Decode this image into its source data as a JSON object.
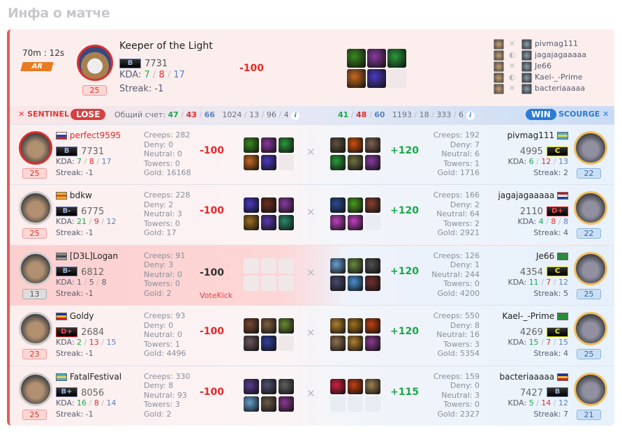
{
  "page_title": "Инфа о матче",
  "summary": {
    "duration": "70m : 12s",
    "mode": "AR",
    "hero_name": "Keeper of the Light",
    "rank": "B",
    "rank_class": "rB",
    "mmr": "7731",
    "kda_label": "KDA:",
    "kills": "7",
    "deaths": "8",
    "assists": "17",
    "streak": "Streak: -1",
    "level": "25",
    "gain": "-100",
    "items": [
      "#3a8a20",
      "#8a3aa0",
      "#2a9a3a",
      "#c86a20",
      "#4a3ac0",
      null
    ],
    "roster": [
      {
        "left": "perfect9595",
        "right": "pivmag111",
        "icon": "swords-icon",
        "highlight": "self"
      },
      {
        "left": "bdkw",
        "right": "jagajagaaaaa",
        "icon": "shield-icon"
      },
      {
        "left": "[D3L]Logan",
        "right": "Je66",
        "icon": "swords-icon",
        "highlight": "kicked"
      },
      {
        "left": "Goldy",
        "right": "Kael-_-Prime",
        "icon": "shield-icon"
      },
      {
        "left": "FatalFestival",
        "right": "bacteriaaaaa",
        "icon": "swords-icon"
      }
    ]
  },
  "teambar": {
    "sentinel": "SENTINEL",
    "lose": "LOSE",
    "total_label": "Общий счет:",
    "s_k": "47",
    "s_d": "43",
    "s_a": "66",
    "s_stats": [
      "1024",
      "13",
      "96",
      "4"
    ],
    "c_k": "41",
    "c_d": "48",
    "c_a": "60",
    "c_stats": [
      "1193",
      "18",
      "333",
      "6"
    ],
    "win": "WIN",
    "scourge": "SCOURGE",
    "info": "i"
  },
  "labels": {
    "kda": "KDA:",
    "creeps": "Creeps:",
    "deny": "Deny:",
    "neutral": "Neutral:",
    "towers": "Towers:",
    "gold": "Gold:",
    "streak": "Streak:"
  },
  "colors": {
    "sentinel": "#e03838",
    "scourge": "#2a7ad8",
    "win_pill": "#2a7ad8",
    "lose_pill": "#d84040"
  },
  "sentinel": [
    {
      "name": "perfect9595",
      "flag": [
        "#fff",
        "#2040c0",
        "#d02020"
      ],
      "rank": "B",
      "rank_class": "rB",
      "mmr": "7731",
      "k": "7",
      "d": "8",
      "a": "17",
      "streak": "-1",
      "level": "25",
      "creeps": "282",
      "deny": "0",
      "neutral": "0",
      "towers": "0",
      "gold": "16168",
      "gain": "-100",
      "self": true,
      "items": [
        "#3a8a20",
        "#8a3aa0",
        "#2a9a3a",
        "#c86a20",
        "#4a3ac0",
        null
      ]
    },
    {
      "name": "bdkw",
      "flag": [
        "#f0b020",
        "#e05020",
        "#f0b020"
      ],
      "rank": "B-",
      "rank_class": "rB",
      "mmr": "6775",
      "k": "21",
      "d": "9",
      "a": "12",
      "streak": "-1",
      "level": "25",
      "creeps": "228",
      "deny": "2",
      "neutral": "3",
      "towers": "0",
      "gold": "17",
      "gain": "-100",
      "items": [
        "#4a3ac0",
        "#6a3020",
        "#8a3aa0",
        "#a07020",
        "#5a3ab0",
        "#2a8a6a"
      ]
    },
    {
      "name": "[D3L]Logan",
      "flag": [
        "#888",
        "#444",
        "#999"
      ],
      "rank": "B-",
      "rank_class": "rB",
      "mmr": "6812",
      "k": "1",
      "d": "5",
      "a": "8",
      "streak": "-1",
      "level": "13",
      "creeps": "91",
      "deny": "3",
      "neutral": "0",
      "towers": "0",
      "gold": "2",
      "gain": "-100",
      "kicked": true,
      "note": "VoteKick",
      "items": [
        null,
        null,
        null,
        null,
        null,
        null
      ]
    },
    {
      "name": "Goldy",
      "flag": [
        "#2030a0",
        "#f0c020",
        "#d02020"
      ],
      "rank": "D+",
      "rank_class": "rD",
      "mmr": "2684",
      "k": "2",
      "d": "13",
      "a": "15",
      "streak": "-1",
      "level": "23",
      "creeps": "93",
      "deny": "0",
      "neutral": "0",
      "towers": "1",
      "gold": "4496",
      "gain": "-100",
      "items": [
        "#7a4a30",
        "#806040",
        "#6a8a30",
        "#6a5a60",
        "#3040a0",
        null
      ]
    },
    {
      "name": "FatalFestival",
      "flag": [
        "#40b0d0",
        "#f0d040",
        "#40b0d0"
      ],
      "rank": "B+",
      "rank_class": "rB",
      "mmr": "8056",
      "k": "16",
      "d": "8",
      "a": "14",
      "streak": "-1",
      "level": "25",
      "creeps": "330",
      "deny": "8",
      "neutral": "93",
      "towers": "3",
      "gold": "2",
      "gain": "-100",
      "items": [
        "#5a3a90",
        "#505070",
        "#606060",
        "#6aa0d0",
        "#6a5a4a",
        "#8a3a90"
      ]
    }
  ],
  "scourge": [
    {
      "name": "pivmag111",
      "flag": [
        "#40b0d0",
        "#f0d040",
        "#40b0d0"
      ],
      "rank": "C",
      "rank_class": "rC",
      "mmr": "4995",
      "k": "6",
      "d": "12",
      "a": "13",
      "streak": "2",
      "level": "22",
      "creeps": "192",
      "deny": "7",
      "neutral": "6",
      "towers": "1",
      "gold": "1716",
      "gain": "+120",
      "items": [
        "#605040",
        "#d05010",
        "#806050",
        "#2a9a3a",
        "#707040",
        "#8a3aa0"
      ]
    },
    {
      "name": "jagajagaaaaa",
      "flag": [
        "#c02020",
        "#fff",
        "#2040a0"
      ],
      "rank": "D+",
      "rank_class": "rD",
      "mmr": "2110",
      "k": "4",
      "d": "8",
      "a": "8",
      "streak": "4",
      "level": "22",
      "creeps": "166",
      "deny": "2",
      "neutral": "64",
      "towers": "2",
      "gold": "2921",
      "gain": "+120",
      "items": [
        "#2a4a90",
        "#4a9a20",
        "#8a4030",
        "#c040c0",
        "#c040c0",
        null
      ]
    },
    {
      "name": "Je66",
      "flag": [
        "#2a8a3a",
        "#2a8a3a",
        "#2a8a3a"
      ],
      "rank": "C",
      "rank_class": "rC",
      "mmr": "4354",
      "k": "11",
      "d": "7",
      "a": "12",
      "streak": "5",
      "level": "25",
      "creeps": "126",
      "deny": "1",
      "neutral": "244",
      "towers": "0",
      "gold": "4200",
      "gain": "+120",
      "items": [
        "#6aa0d0",
        "#6a8a40",
        "#505050",
        "#4a4a70",
        "#4a90d0",
        "#703030"
      ]
    },
    {
      "name": "Kael-_-Prime",
      "flag": [
        "#2a8a3a",
        "#2a8a3a",
        "#2a8a3a"
      ],
      "rank": "C",
      "rank_class": "rC",
      "mmr": "4269",
      "k": "15",
      "d": "7",
      "a": "15",
      "streak": "4",
      "level": "25",
      "creeps": "550",
      "deny": "8",
      "neutral": "16",
      "towers": "3",
      "gold": "5354",
      "gain": "+120",
      "items": [
        "#b08030",
        "#a07020",
        "#c04010",
        "#907050",
        "#b08030",
        "#8a3a90"
      ]
    },
    {
      "name": "bacteriaaaaa",
      "flag": [
        "#2030a0",
        "#f0c020",
        "#d02020"
      ],
      "rank": "B",
      "rank_class": "rB",
      "mmr": "7427",
      "k": "5",
      "d": "14",
      "a": "12",
      "streak": "7",
      "level": "21",
      "creeps": "159",
      "deny": "0",
      "neutral": "3",
      "towers": "0",
      "gold": "2327",
      "gain": "+115",
      "items": [
        "#d02040",
        "#c04010",
        "#a08050",
        null,
        null,
        null
      ]
    }
  ]
}
